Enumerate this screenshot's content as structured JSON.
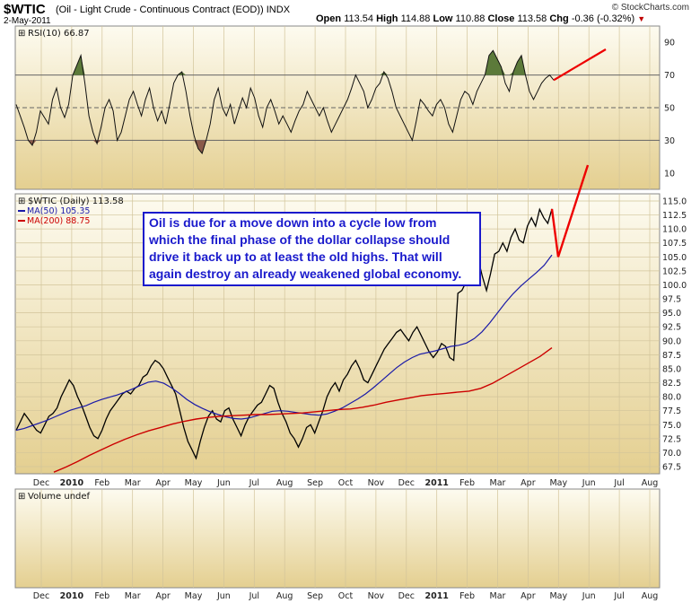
{
  "header": {
    "symbol": "$WTIC",
    "name": "(Oil - Light Crude - Continuous Contract (EOD))",
    "exchange": "INDX",
    "date": "2-May-2011",
    "source": "© StockCharts.com",
    "open_label": "Open",
    "open": "113.54",
    "high_label": "High",
    "high": "114.88",
    "low_label": "Low",
    "low": "110.88",
    "close_label": "Close",
    "close": "113.58",
    "chg_label": "Chg",
    "chg": "-0.36 (-0.32%)"
  },
  "annotation": "Oil is due for a move down into a cycle low from which the final phase of the dollar collapse should drive it back up to at least the old highs. That will again destroy an already weakened global economy.",
  "colors": {
    "panel_bg_top": "#fdfbf0",
    "panel_bg_bottom": "#e4cf90",
    "price": "#000000",
    "ma50": "#1a1aa8",
    "ma200": "#cc0000",
    "projection": "#ee0000",
    "rsi_overbought_fill": "#5c7a3a",
    "rsi_oversold_fill": "#8a5a4a",
    "annotation_text": "#1a1acc"
  },
  "chart_data": [
    {
      "type": "line",
      "title": "RSI(10) 66.87",
      "legend_marker": "⊞",
      "ylim": [
        0,
        100
      ],
      "yticks": [
        10,
        30,
        50,
        70,
        90
      ],
      "reference_lines": [
        30,
        50,
        70
      ],
      "xlabels": [
        "Dec",
        "2010",
        "Feb",
        "Mar",
        "Apr",
        "May",
        "Jun",
        "Jul",
        "Aug",
        "Sep",
        "Oct",
        "Nov",
        "Dec",
        "2011",
        "Feb",
        "Mar",
        "Apr",
        "May",
        "Jun",
        "Jul",
        "Aug"
      ],
      "series": [
        {
          "name": "RSI(10)",
          "last": 66.87,
          "values": [
            52,
            45,
            38,
            30,
            27,
            35,
            48,
            44,
            40,
            55,
            62,
            50,
            44,
            52,
            70,
            76,
            82,
            65,
            45,
            35,
            28,
            38,
            50,
            55,
            48,
            30,
            35,
            45,
            55,
            60,
            52,
            45,
            55,
            62,
            50,
            42,
            48,
            40,
            52,
            65,
            70,
            72,
            60,
            45,
            33,
            25,
            22,
            30,
            40,
            55,
            62,
            50,
            45,
            52,
            40,
            48,
            56,
            50,
            62,
            56,
            45,
            38,
            50,
            55,
            48,
            40,
            45,
            40,
            35,
            42,
            48,
            52,
            60,
            55,
            50,
            45,
            50,
            42,
            35,
            40,
            45,
            50,
            55,
            62,
            70,
            65,
            60,
            50,
            55,
            62,
            65,
            72,
            68,
            60,
            50,
            45,
            40,
            35,
            30,
            42,
            55,
            52,
            48,
            45,
            52,
            55,
            50,
            40,
            35,
            45,
            55,
            60,
            58,
            52,
            60,
            65,
            70,
            82,
            85,
            80,
            75,
            65,
            60,
            72,
            78,
            82,
            70,
            60,
            55,
            60,
            65,
            68,
            70,
            66.87
          ]
        },
        {
          "name": "RSI(10) projection",
          "values": [
            66.87,
            90
          ]
        }
      ],
      "overbought_events": [
        "Jan 2010",
        "Feb 2011",
        "Apr 2011"
      ],
      "oversold_events": [
        "May 2010"
      ]
    },
    {
      "type": "line",
      "title": "$WTIC (Daily) 113.58",
      "legend_marker": "⊞",
      "ylim": [
        66.5,
        115.5
      ],
      "yticks": [
        67.5,
        70.0,
        72.5,
        75.0,
        77.5,
        80.0,
        82.5,
        85.0,
        87.5,
        90.0,
        92.5,
        95.0,
        97.5,
        100.0,
        102.5,
        105.0,
        107.5,
        110.0,
        112.5,
        115.0
      ],
      "xlabels": [
        "Dec",
        "2010",
        "Feb",
        "Mar",
        "Apr",
        "May",
        "Jun",
        "Jul",
        "Aug",
        "Sep",
        "Oct",
        "Nov",
        "Dec",
        "2011",
        "Feb",
        "Mar",
        "Apr",
        "May",
        "Jun",
        "Jul",
        "Aug"
      ],
      "series": [
        {
          "name": "$WTIC (Daily)",
          "last": 113.58,
          "values": [
            74.0,
            75.5,
            77.0,
            76.0,
            75.0,
            74.0,
            73.5,
            75.0,
            76.5,
            77.0,
            78.0,
            80.0,
            81.5,
            83.0,
            82.0,
            80.0,
            78.5,
            76.5,
            74.5,
            73.0,
            72.5,
            74.0,
            76.0,
            77.5,
            78.5,
            79.5,
            80.5,
            81.0,
            80.5,
            81.5,
            82.0,
            83.5,
            84.0,
            85.5,
            86.5,
            86.0,
            85.0,
            83.5,
            82.0,
            80.5,
            77.5,
            74.5,
            72.0,
            70.5,
            69.0,
            72.0,
            74.5,
            76.5,
            77.5,
            76.0,
            75.5,
            77.5,
            78.0,
            76.0,
            74.5,
            73.0,
            75.0,
            76.5,
            77.5,
            78.5,
            79.0,
            80.5,
            82.0,
            81.5,
            79.0,
            77.0,
            75.5,
            73.5,
            72.5,
            71.0,
            72.5,
            74.5,
            75.0,
            73.5,
            75.5,
            77.5,
            80.0,
            81.5,
            82.5,
            81.0,
            83.0,
            84.0,
            85.5,
            86.5,
            85.0,
            83.0,
            82.5,
            84.0,
            85.5,
            87.0,
            88.5,
            89.5,
            90.5,
            91.5,
            92.0,
            91.0,
            90.0,
            91.5,
            92.5,
            91.0,
            89.5,
            88.0,
            87.0,
            88.0,
            89.5,
            89.0,
            87.0,
            86.5,
            98.5,
            99.0,
            100.5,
            103.0,
            105.0,
            104.5,
            101.5,
            99.0,
            102.0,
            105.5,
            106.0,
            107.5,
            106.0,
            108.5,
            110.0,
            108.0,
            107.5,
            110.5,
            112.0,
            110.5,
            113.5,
            112.0,
            111.0,
            113.58
          ]
        },
        {
          "name": "MA(50)",
          "last": 105.35,
          "values": [
            74.0,
            74.3,
            74.8,
            75.3,
            75.8,
            76.4,
            77.0,
            77.6,
            78.0,
            78.4,
            79.0,
            79.5,
            79.9,
            80.3,
            80.8,
            81.4,
            82.0,
            82.6,
            82.8,
            82.4,
            81.6,
            80.6,
            79.5,
            78.6,
            77.9,
            77.3,
            76.8,
            76.4,
            76.1,
            76.0,
            76.2,
            76.6,
            77.0,
            77.4,
            77.5,
            77.4,
            77.2,
            77.0,
            76.8,
            76.7,
            76.9,
            77.4,
            78.0,
            78.8,
            79.6,
            80.5,
            81.6,
            82.8,
            84.0,
            85.2,
            86.2,
            87.0,
            87.6,
            87.9,
            88.2,
            88.6,
            89.0,
            89.2,
            89.6,
            90.4,
            91.6,
            93.2,
            95.0,
            96.8,
            98.4,
            99.8,
            101.0,
            102.2,
            103.5,
            105.35
          ]
        },
        {
          "name": "MA(200)",
          "last": 88.75,
          "values": [
            66.5,
            67.4,
            68.4,
            69.5,
            70.5,
            71.5,
            72.4,
            73.2,
            73.9,
            74.5,
            75.1,
            75.6,
            76.0,
            76.3,
            76.5,
            76.6,
            76.7,
            76.8,
            76.8,
            76.9,
            77.0,
            77.1,
            77.3,
            77.5,
            77.7,
            77.8,
            78.1,
            78.5,
            79.0,
            79.4,
            79.8,
            80.2,
            80.4,
            80.6,
            80.8,
            81.0,
            81.5,
            82.4,
            83.6,
            84.8,
            86.0,
            87.2,
            88.75
          ]
        },
        {
          "name": "Projection",
          "values": [
            113.58,
            105.0,
            115.0
          ]
        }
      ]
    },
    {
      "type": "bar",
      "title": "Volume undef",
      "legend_marker": "⊞",
      "xlabels": [
        "Dec",
        "2010",
        "Feb",
        "Mar",
        "Apr",
        "May",
        "Jun",
        "Jul",
        "Aug",
        "Sep",
        "Oct",
        "Nov",
        "Dec",
        "2011",
        "Feb",
        "Mar",
        "Apr",
        "May",
        "Jun",
        "Jul",
        "Aug"
      ],
      "values": []
    }
  ]
}
